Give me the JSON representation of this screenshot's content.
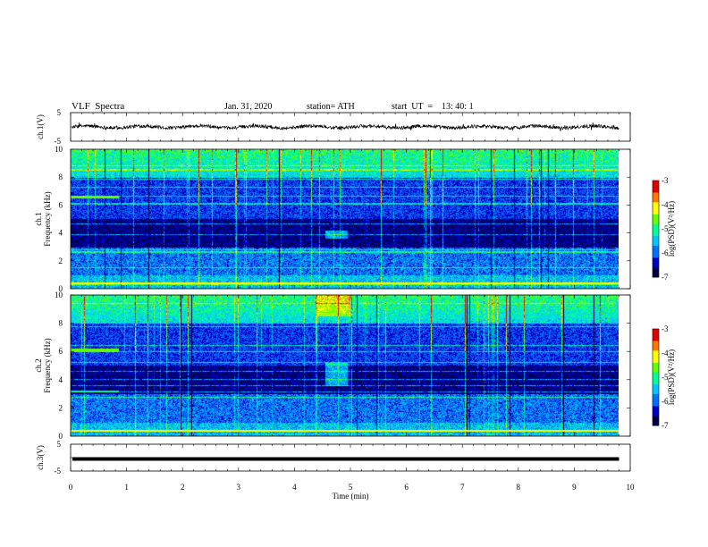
{
  "header": {
    "title": "VLF  Spectra",
    "date": "Jan. 31, 2020",
    "station": "station= ATH",
    "start_ut": "start  UT  =    13: 40: 1"
  },
  "chart_data": [
    {
      "type": "line",
      "panel": "ch1-waveform",
      "ylabel": "ch.1(V)",
      "yticks": [
        "5",
        "-5"
      ],
      "ylim": [
        -5,
        5
      ],
      "xlim": [
        0,
        10
      ],
      "signal_mean": 0.0,
      "signal_amplitude": 1.0,
      "color": "#000000"
    },
    {
      "type": "heatmap",
      "panel": "ch1-spectrogram",
      "ylabel_line1": "ch.1",
      "ylabel_line2": "Frequency  (kHz)",
      "yticks": [
        "0",
        "2",
        "4",
        "6",
        "8",
        "10"
      ],
      "ylim": [
        0,
        10
      ],
      "xlim": [
        0,
        9.8
      ],
      "colorbar": {
        "label": "log(PSD)(V²/Hz)",
        "ticks": [
          "-3",
          "-4",
          "-5",
          "-6",
          "-7"
        ],
        "range": [
          -7,
          -3
        ]
      },
      "colors": [
        "#00004a",
        "#0000c8",
        "#0070ff",
        "#00c8ff",
        "#00ff96",
        "#64ff00",
        "#ffff00",
        "#ff7800",
        "#e00000",
        "#ffffff"
      ]
    },
    {
      "type": "heatmap",
      "panel": "ch2-spectrogram",
      "ylabel_line1": "ch.2",
      "ylabel_line2": "Frequency  (kHz)",
      "yticks": [
        "0",
        "2",
        "4",
        "6",
        "8",
        "10"
      ],
      "ylim": [
        0,
        10
      ],
      "xlim": [
        0,
        9.8
      ],
      "colorbar": {
        "label": "log(PSD)(V²/Hz)",
        "ticks": [
          "-3",
          "-4",
          "-5",
          "-6",
          "-7"
        ],
        "range": [
          -7,
          -3
        ]
      }
    },
    {
      "type": "line",
      "panel": "ch3-waveform",
      "ylabel": "ch.3(V)",
      "yticks": [
        "5",
        "-5"
      ],
      "ylim": [
        -5,
        5
      ],
      "xlim": [
        0,
        10
      ],
      "signal_mean": -0.5,
      "color": "#000000"
    }
  ],
  "xaxis": {
    "label": "Time  (min)",
    "ticks": [
      "0",
      "1",
      "2",
      "3",
      "4",
      "5",
      "6",
      "7",
      "8",
      "9",
      "10"
    ],
    "range": [
      0,
      10
    ]
  }
}
